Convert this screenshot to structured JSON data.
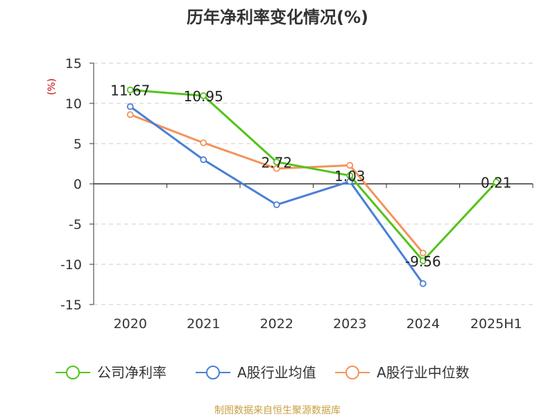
{
  "chart_data": {
    "type": "line",
    "title": "历年净利率变化情况(%)",
    "ylabel": "(%)",
    "xlabel": "",
    "categories": [
      "2020",
      "2021",
      "2022",
      "2023",
      "2024",
      "2025H1"
    ],
    "ylim": [
      -15,
      15
    ],
    "yticks": [
      15,
      10,
      5,
      0,
      -5,
      -10,
      -15
    ],
    "grid": true,
    "legend_position": "bottom",
    "series": [
      {
        "name": "公司净利率",
        "color": "#52c41a",
        "values": [
          11.67,
          10.95,
          2.72,
          1.03,
          -9.56,
          0.21
        ],
        "labels": [
          "11.67",
          "10.95",
          "2.72",
          "1.03",
          "-9.56",
          "0.21"
        ]
      },
      {
        "name": "A股行业均值",
        "color": "#4a7fd6",
        "values": [
          9.6,
          3.0,
          -2.6,
          0.3,
          -12.4,
          null
        ],
        "labels": []
      },
      {
        "name": "A股行业中位数",
        "color": "#f4935a",
        "values": [
          8.6,
          5.1,
          1.9,
          2.3,
          -8.6,
          null
        ],
        "labels": []
      }
    ]
  },
  "source_note": "制图数据来自恒生聚源数据库"
}
